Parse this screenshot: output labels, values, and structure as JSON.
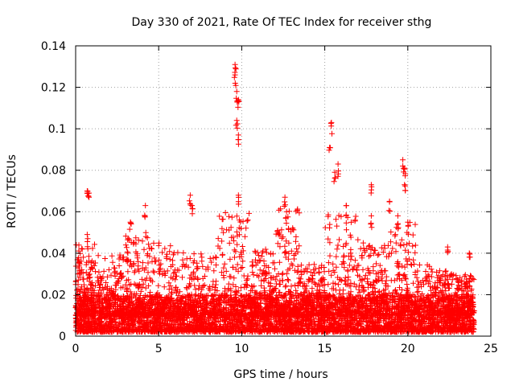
{
  "chart_data": {
    "type": "scatter",
    "title": "Day 330 of 2021, Rate Of TEC Index for receiver sthg",
    "xlabel": "GPS time / hours",
    "ylabel": "ROTI / TECUs",
    "xlim": [
      0,
      25
    ],
    "ylim": [
      0,
      0.14
    ],
    "xticks": [
      0,
      5,
      10,
      15,
      20,
      25
    ],
    "xtick_labels": [
      "0",
      "5",
      "10",
      "15",
      "20",
      "25"
    ],
    "yticks": [
      0,
      0.02,
      0.04,
      0.06,
      0.08,
      0.1,
      0.12,
      0.14
    ],
    "ytick_labels": [
      "0",
      "0.02",
      "0.04",
      "0.06",
      "0.08",
      "0.1",
      "0.12",
      "0.14"
    ],
    "grid": true,
    "marker": "+",
    "series": [
      {
        "name": "ROTI",
        "color": "#ff0000",
        "x_range": [
          0,
          24
        ],
        "baseline_range": [
          0.002,
          0.02
        ],
        "peaks": [
          {
            "x": 0.7,
            "y": 0.07
          },
          {
            "x": 0.8,
            "y": 0.069
          },
          {
            "x": 0.7,
            "y": 0.049
          },
          {
            "x": 3.3,
            "y": 0.055
          },
          {
            "x": 4.2,
            "y": 0.063
          },
          {
            "x": 6.9,
            "y": 0.068
          },
          {
            "x": 7.0,
            "y": 0.063
          },
          {
            "x": 9.6,
            "y": 0.131
          },
          {
            "x": 9.6,
            "y": 0.126
          },
          {
            "x": 9.7,
            "y": 0.118
          },
          {
            "x": 9.8,
            "y": 0.114
          },
          {
            "x": 9.7,
            "y": 0.104
          },
          {
            "x": 9.8,
            "y": 0.097
          },
          {
            "x": 9.8,
            "y": 0.068
          },
          {
            "x": 12.6,
            "y": 0.067
          },
          {
            "x": 12.7,
            "y": 0.06
          },
          {
            "x": 15.4,
            "y": 0.103
          },
          {
            "x": 15.3,
            "y": 0.091
          },
          {
            "x": 15.8,
            "y": 0.083
          },
          {
            "x": 15.6,
            "y": 0.079
          },
          {
            "x": 16.3,
            "y": 0.063
          },
          {
            "x": 17.8,
            "y": 0.073
          },
          {
            "x": 17.8,
            "y": 0.058
          },
          {
            "x": 18.9,
            "y": 0.065
          },
          {
            "x": 19.4,
            "y": 0.058
          },
          {
            "x": 19.7,
            "y": 0.085
          },
          {
            "x": 19.8,
            "y": 0.081
          },
          {
            "x": 19.8,
            "y": 0.073
          },
          {
            "x": 20.0,
            "y": 0.055
          },
          {
            "x": 22.4,
            "y": 0.043
          },
          {
            "x": 23.7,
            "y": 0.04
          }
        ],
        "activity_bursts": [
          {
            "x_start": 0.0,
            "x_end": 1.2,
            "max": 0.045
          },
          {
            "x_start": 1.3,
            "x_end": 3.0,
            "max": 0.04
          },
          {
            "x_start": 3.0,
            "x_end": 4.5,
            "max": 0.05
          },
          {
            "x_start": 4.5,
            "x_end": 6.5,
            "max": 0.045
          },
          {
            "x_start": 6.5,
            "x_end": 8.5,
            "max": 0.04
          },
          {
            "x_start": 8.5,
            "x_end": 10.5,
            "max": 0.06
          },
          {
            "x_start": 10.5,
            "x_end": 12.0,
            "max": 0.042
          },
          {
            "x_start": 12.0,
            "x_end": 13.5,
            "max": 0.062
          },
          {
            "x_start": 13.5,
            "x_end": 15.0,
            "max": 0.035
          },
          {
            "x_start": 15.0,
            "x_end": 17.0,
            "max": 0.06
          },
          {
            "x_start": 17.0,
            "x_end": 18.5,
            "max": 0.045
          },
          {
            "x_start": 18.5,
            "x_end": 20.5,
            "max": 0.055
          },
          {
            "x_start": 20.5,
            "x_end": 22.5,
            "max": 0.035
          },
          {
            "x_start": 22.5,
            "x_end": 24.0,
            "max": 0.03
          }
        ]
      }
    ]
  }
}
